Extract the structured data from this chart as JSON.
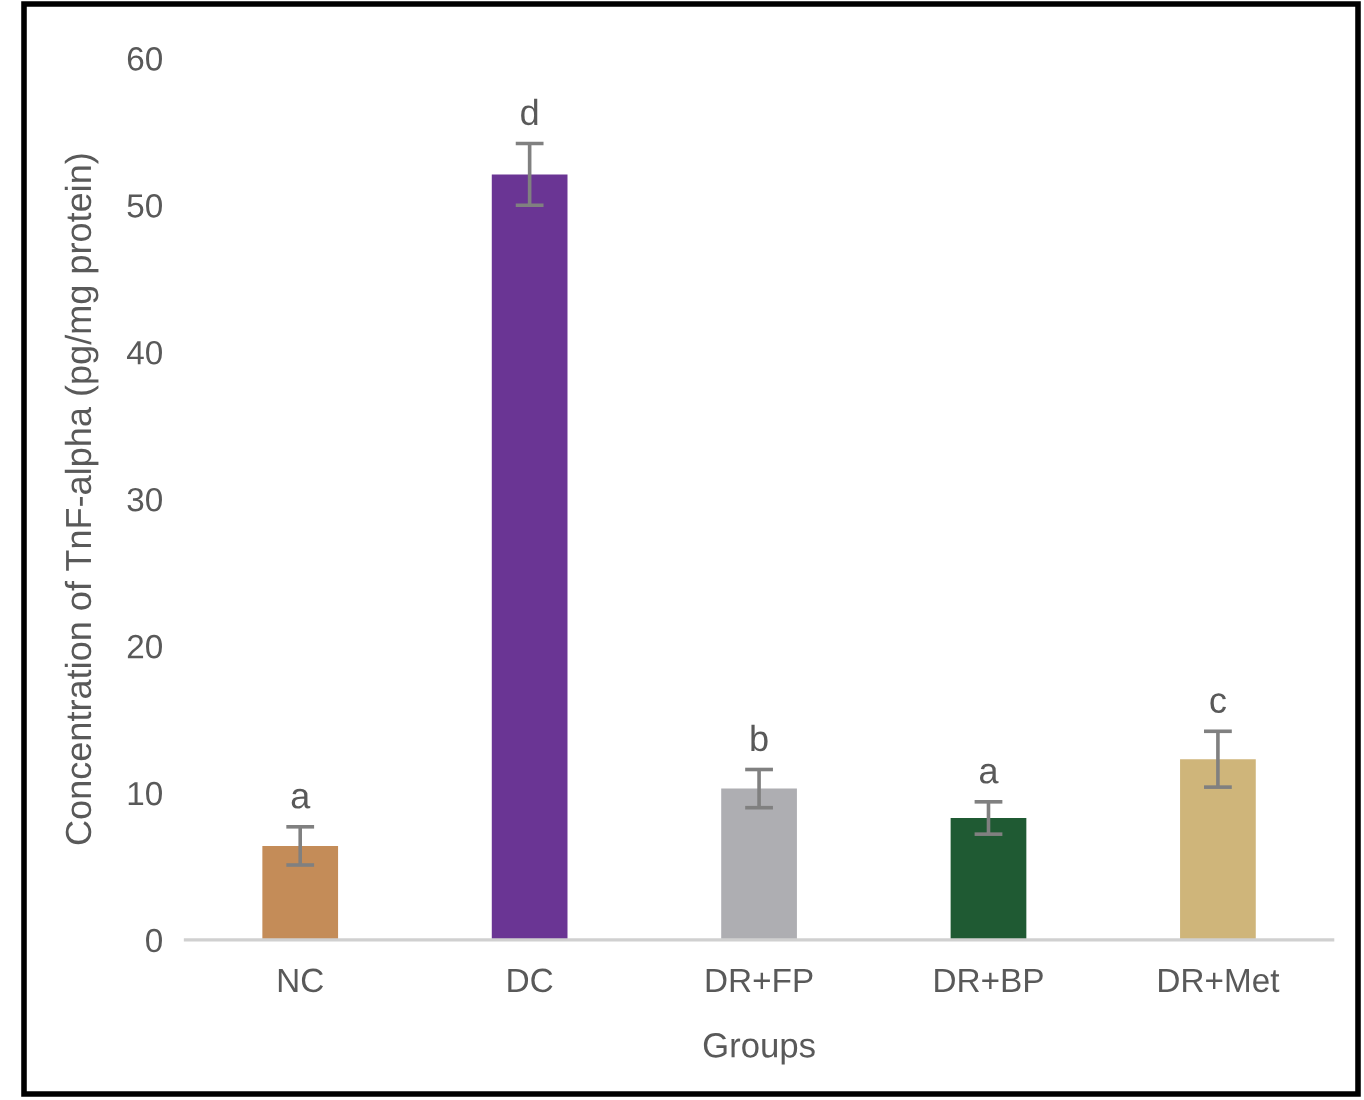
{
  "chart_data": {
    "type": "bar",
    "xlabel": "Groups",
    "ylabel": "Concentration of TnF-alpha (pg/mg protein)",
    "categories": [
      "NC",
      "DC",
      "DR+FP",
      "DR+BP",
      "DR+Met"
    ],
    "values": [
      6.4,
      52.1,
      10.3,
      8.3,
      12.3
    ],
    "errors": [
      1.3,
      2.1,
      1.3,
      1.1,
      1.9
    ],
    "colors": [
      "#c48c58",
      "#6a3594",
      "#aeaeb2",
      "#1f5a33",
      "#cfb57a"
    ],
    "ylim": [
      0,
      60
    ],
    "yticks": [
      0,
      10,
      20,
      30,
      40,
      50,
      60
    ],
    "annotations": [
      {
        "text": "a",
        "x": "NC",
        "y": 6.4
      },
      {
        "text": "d",
        "x": "DC",
        "y": 52.1
      },
      {
        "text": "b",
        "x": "DR+FP",
        "y": 10.3
      },
      {
        "text": "a",
        "x": "DR+BP",
        "y": 8.3
      },
      {
        "text": "c",
        "x": "DR+Met",
        "y": 12.3
      }
    ]
  }
}
